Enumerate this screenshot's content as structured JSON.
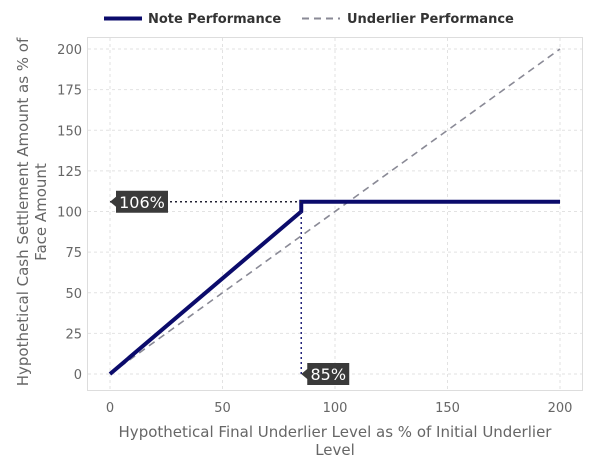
{
  "chart_data": {
    "type": "line",
    "xlabel": "Hypothetical Final Underlier Level as % of Initial Underlier Level",
    "ylabel": "Hypothetical Cash Settlement Amount as % of Face Amount",
    "xlim": [
      0,
      200
    ],
    "ylim": [
      0,
      200
    ],
    "xticks": [
      0,
      50,
      100,
      150,
      200
    ],
    "yticks": [
      0,
      25,
      50,
      75,
      100,
      125,
      150,
      175,
      200
    ],
    "grid": true,
    "legend_position": "top",
    "series": [
      {
        "name": "Note Performance",
        "color": "#0b0b6b",
        "style": "solid",
        "x": [
          0,
          85,
          85,
          200
        ],
        "y": [
          0,
          100,
          106,
          106
        ]
      },
      {
        "name": "Underlier Performance",
        "color": "#8a8a96",
        "style": "dashed",
        "x": [
          0,
          200
        ],
        "y": [
          0,
          200
        ]
      }
    ],
    "annotations": [
      {
        "text": "106%",
        "x": 0,
        "y": 106,
        "guide": "horizontal",
        "guide_to_x": 85
      },
      {
        "text": "85%",
        "x": 85,
        "y": 0,
        "guide": "vertical",
        "guide_to_y": 100
      }
    ]
  }
}
